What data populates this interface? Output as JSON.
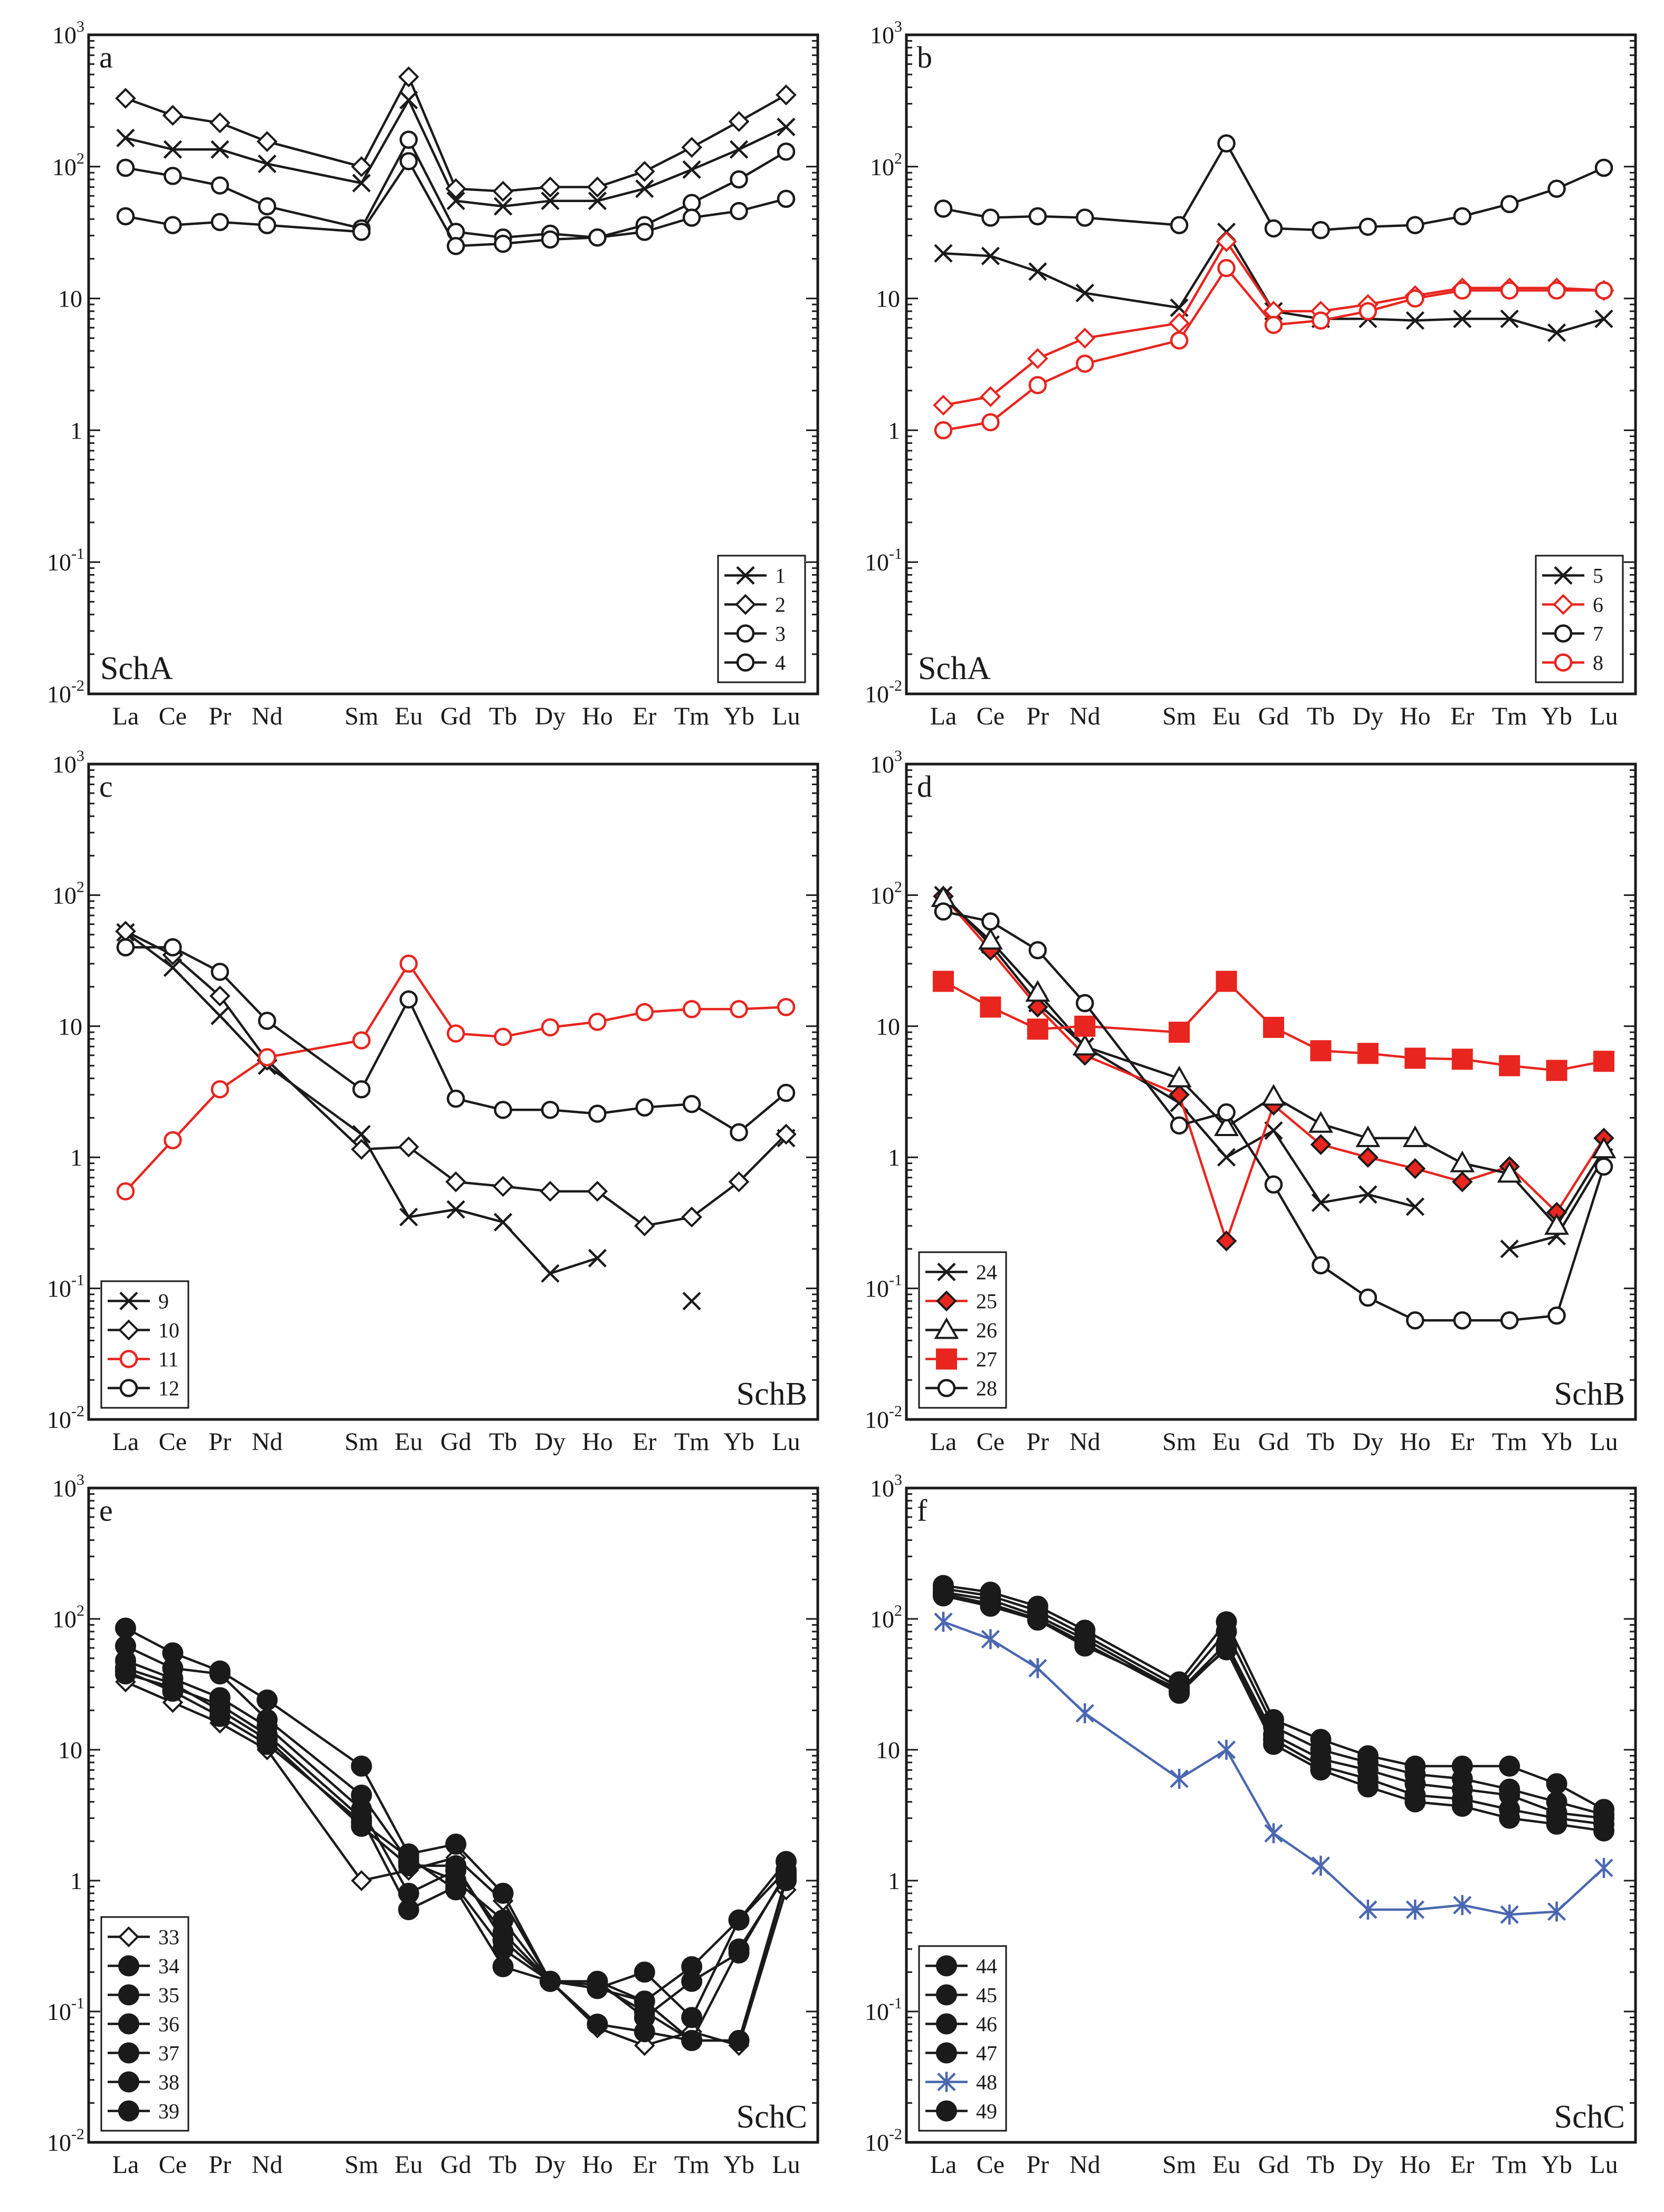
{
  "colors": {
    "black": "#1a1a1a",
    "red": "#e8251f",
    "blue": "#4a67b0",
    "white": "#ffffff"
  },
  "chart_data": [
    {
      "type": "line",
      "panel": "a",
      "group_label": "SchA",
      "yscale": "log",
      "ylim": [
        0.01,
        1000
      ],
      "ytick_labels": [
        {
          "base": "10",
          "exp": "-2"
        },
        {
          "base": "10",
          "exp": "-1"
        },
        {
          "base": "1",
          "exp": ""
        },
        {
          "base": "10",
          "exp": ""
        },
        {
          "base": "10",
          "exp": "2"
        },
        {
          "base": "10",
          "exp": "3"
        }
      ],
      "categories": [
        "La",
        "Ce",
        "Pr",
        "Nd",
        "Sm",
        "Eu",
        "Gd",
        "Tb",
        "Dy",
        "Ho",
        "Er",
        "Tm",
        "Yb",
        "Lu"
      ],
      "x_index": [
        0,
        1,
        2,
        3,
        5,
        6,
        7,
        8,
        9,
        10,
        11,
        12,
        13,
        14
      ],
      "legend_position": "bottom-right",
      "series": [
        {
          "name": "1",
          "marker": "x",
          "color": "black",
          "values": [
            165,
            135,
            135,
            105,
            75,
            320,
            55,
            50,
            55,
            55,
            68,
            95,
            135,
            200
          ]
        },
        {
          "name": "2",
          "marker": "diamond",
          "color": "black",
          "values": [
            330,
            245,
            215,
            155,
            100,
            480,
            68,
            65,
            70,
            70,
            92,
            140,
            220,
            350
          ]
        },
        {
          "name": "3",
          "marker": "circle",
          "color": "black",
          "values": [
            98,
            85,
            72,
            50,
            34,
            160,
            32,
            29,
            31,
            29,
            36,
            53,
            80,
            130
          ]
        },
        {
          "name": "4",
          "marker": "circle",
          "color": "black",
          "values": [
            42,
            36,
            38,
            36,
            32,
            110,
            25,
            26,
            28,
            29,
            32,
            41,
            46,
            57
          ]
        }
      ]
    },
    {
      "type": "line",
      "panel": "b",
      "group_label": "SchA",
      "yscale": "log",
      "ylim": [
        0.01,
        1000
      ],
      "ytick_labels": [
        {
          "base": "10",
          "exp": "-2"
        },
        {
          "base": "10",
          "exp": "-1"
        },
        {
          "base": "1",
          "exp": ""
        },
        {
          "base": "10",
          "exp": ""
        },
        {
          "base": "10",
          "exp": "2"
        },
        {
          "base": "10",
          "exp": "3"
        }
      ],
      "categories": [
        "La",
        "Ce",
        "Pr",
        "Nd",
        "Sm",
        "Eu",
        "Gd",
        "Tb",
        "Dy",
        "Ho",
        "Er",
        "Tm",
        "Yb",
        "Lu"
      ],
      "x_index": [
        0,
        1,
        2,
        3,
        5,
        6,
        7,
        8,
        9,
        10,
        11,
        12,
        13,
        14
      ],
      "legend_position": "bottom-right",
      "series": [
        {
          "name": "5",
          "marker": "x",
          "color": "black",
          "values": [
            22,
            21,
            16,
            11,
            8.5,
            32,
            8,
            7,
            7,
            6.8,
            7,
            7,
            5.5,
            7
          ]
        },
        {
          "name": "6",
          "marker": "diamond",
          "color": "red",
          "values": [
            1.55,
            1.8,
            3.5,
            5,
            6.5,
            27,
            8,
            8,
            9,
            10.5,
            12,
            12,
            12,
            11.5
          ]
        },
        {
          "name": "7",
          "marker": "circle",
          "color": "black",
          "values": [
            48,
            41,
            42,
            41,
            36,
            150,
            34,
            33,
            35,
            36,
            42,
            52,
            68,
            98
          ]
        },
        {
          "name": "8",
          "marker": "circle",
          "color": "red",
          "values": [
            1.0,
            1.15,
            2.2,
            3.2,
            4.8,
            17,
            6.3,
            6.8,
            8,
            10,
            11.5,
            11.5,
            11.5,
            11.5
          ]
        }
      ]
    },
    {
      "type": "line",
      "panel": "c",
      "group_label": "SchB",
      "yscale": "log",
      "ylim": [
        0.01,
        1000
      ],
      "ytick_labels": [
        {
          "base": "10",
          "exp": "-2"
        },
        {
          "base": "10",
          "exp": "-1"
        },
        {
          "base": "1",
          "exp": ""
        },
        {
          "base": "10",
          "exp": ""
        },
        {
          "base": "10",
          "exp": "2"
        },
        {
          "base": "10",
          "exp": "3"
        }
      ],
      "categories": [
        "La",
        "Ce",
        "Pr",
        "Nd",
        "Sm",
        "Eu",
        "Gd",
        "Tb",
        "Dy",
        "Ho",
        "Er",
        "Tm",
        "Yb",
        "Lu"
      ],
      "x_index": [
        0,
        1,
        2,
        3,
        5,
        6,
        7,
        8,
        9,
        10,
        11,
        12,
        13,
        14
      ],
      "legend_position": "bottom-left",
      "series": [
        {
          "name": "9",
          "marker": "x",
          "color": "black",
          "values": [
            52,
            28,
            12,
            5,
            1.5,
            0.35,
            0.4,
            0.32,
            0.13,
            0.17,
            null,
            0.08,
            null,
            1.4
          ]
        },
        {
          "name": "10",
          "marker": "diamond",
          "color": "black",
          "values": [
            53,
            35,
            17,
            5.5,
            1.15,
            1.2,
            0.65,
            0.6,
            0.55,
            0.55,
            0.3,
            0.35,
            0.65,
            1.5
          ]
        },
        {
          "name": "11",
          "marker": "circle",
          "color": "red",
          "values": [
            0.55,
            1.35,
            3.3,
            5.8,
            7.8,
            30,
            8.8,
            8.3,
            9.8,
            10.8,
            12.8,
            13.5,
            13.5,
            14
          ]
        },
        {
          "name": "12",
          "marker": "circle",
          "color": "black",
          "values": [
            40,
            40,
            26,
            11,
            3.3,
            16,
            2.8,
            2.3,
            2.3,
            2.15,
            2.4,
            2.55,
            1.55,
            3.1
          ]
        }
      ]
    },
    {
      "type": "line",
      "panel": "d",
      "group_label": "SchB",
      "yscale": "log",
      "ylim": [
        0.01,
        1000
      ],
      "ytick_labels": [
        {
          "base": "10",
          "exp": "-2"
        },
        {
          "base": "10",
          "exp": "-1"
        },
        {
          "base": "1",
          "exp": ""
        },
        {
          "base": "10",
          "exp": ""
        },
        {
          "base": "10",
          "exp": "2"
        },
        {
          "base": "10",
          "exp": "3"
        }
      ],
      "categories": [
        "La",
        "Ce",
        "Pr",
        "Nd",
        "Sm",
        "Eu",
        "Gd",
        "Tb",
        "Dy",
        "Ho",
        "Er",
        "Tm",
        "Yb",
        "Lu"
      ],
      "x_index": [
        0,
        1,
        2,
        3,
        5,
        6,
        7,
        8,
        9,
        10,
        11,
        12,
        13,
        14
      ],
      "legend_position": "bottom-left",
      "series": [
        {
          "name": "24",
          "marker": "x",
          "color": "black",
          "values": [
            100,
            42,
            15,
            7,
            2.6,
            1.0,
            1.6,
            0.45,
            0.52,
            0.42,
            null,
            0.2,
            0.25,
            1.0
          ]
        },
        {
          "name": "25",
          "marker": "diamond-filled",
          "color": "red",
          "values": [
            98,
            38,
            14,
            6,
            3.0,
            0.23,
            2.5,
            1.25,
            1.0,
            0.82,
            0.65,
            0.85,
            0.38,
            1.4
          ]
        },
        {
          "name": "26",
          "marker": "triangle",
          "color": "black",
          "values": [
            95,
            45,
            18,
            7,
            4.0,
            1.7,
            2.9,
            1.8,
            1.4,
            1.4,
            0.9,
            0.75,
            0.3,
            1.15
          ]
        },
        {
          "name": "27",
          "marker": "square-filled",
          "color": "red",
          "values": [
            22,
            14,
            9.5,
            10,
            9,
            22,
            9.8,
            6.5,
            6.2,
            5.7,
            5.6,
            5.0,
            4.6,
            5.4
          ]
        },
        {
          "name": "28",
          "marker": "circle",
          "color": "black",
          "values": [
            75,
            63,
            38,
            15,
            1.75,
            2.2,
            0.62,
            0.15,
            0.085,
            0.057,
            0.057,
            0.057,
            0.062,
            0.85
          ]
        }
      ]
    },
    {
      "type": "line",
      "panel": "e",
      "group_label": "SchC",
      "yscale": "log",
      "ylim": [
        0.01,
        1000
      ],
      "ytick_labels": [
        {
          "base": "10",
          "exp": "-2"
        },
        {
          "base": "10",
          "exp": "-1"
        },
        {
          "base": "1",
          "exp": ""
        },
        {
          "base": "10",
          "exp": ""
        },
        {
          "base": "10",
          "exp": "2"
        },
        {
          "base": "10",
          "exp": "3"
        }
      ],
      "categories": [
        "La",
        "Ce",
        "Pr",
        "Nd",
        "Sm",
        "Eu",
        "Gd",
        "Tb",
        "Dy",
        "Ho",
        "Er",
        "Tm",
        "Yb",
        "Lu"
      ],
      "x_index": [
        0,
        1,
        2,
        3,
        5,
        6,
        7,
        8,
        9,
        10,
        11,
        12,
        13,
        14
      ],
      "legend_position": "bottom-left",
      "series": [
        {
          "name": "33",
          "marker": "diamond",
          "color": "black",
          "values": [
            33,
            23,
            16,
            10,
            1.0,
            1.2,
            1.5,
            0.7,
            0.17,
            0.075,
            0.055,
            0.07,
            0.055,
            0.85
          ]
        },
        {
          "name": "34",
          "marker": "circle-filled",
          "color": "black",
          "values": [
            85,
            55,
            40,
            24,
            7.5,
            1.6,
            1.9,
            0.8,
            0.17,
            0.15,
            0.2,
            0.09,
            0.5,
            1.4
          ]
        },
        {
          "name": "35",
          "marker": "circle-filled",
          "color": "black",
          "values": [
            62,
            42,
            38,
            17,
            4.5,
            1.4,
            1.0,
            0.5,
            0.17,
            0.17,
            0.12,
            0.22,
            0.5,
            1.2
          ]
        },
        {
          "name": "36",
          "marker": "circle-filled",
          "color": "black",
          "values": [
            48,
            35,
            25,
            15,
            3.5,
            0.8,
            1.2,
            0.4,
            0.17,
            0.16,
            0.1,
            0.06,
            0.3,
            1.1
          ]
        },
        {
          "name": "37",
          "marker": "circle-filled",
          "color": "black",
          "values": [
            38,
            30,
            22,
            13,
            3.0,
            0.6,
            0.9,
            0.3,
            0.17,
            0.08,
            0.07,
            0.06,
            0.06,
            1.0
          ]
        },
        {
          "name": "38",
          "marker": "circle-filled",
          "color": "black",
          "values": [
            42,
            32,
            20,
            12,
            2.6,
            1.3,
            1.3,
            0.35,
            0.17,
            0.17,
            0.09,
            0.17,
            0.28,
            1.15
          ]
        },
        {
          "name": "39",
          "marker": "circle-filled",
          "color": "black",
          "values": [
            40,
            28,
            18,
            11,
            2.8,
            1.5,
            0.85,
            0.22,
            0.17,
            0.15,
            0.12,
            0.06,
            0.06,
            1.05
          ]
        }
      ]
    },
    {
      "type": "line",
      "panel": "f",
      "group_label": "SchC",
      "yscale": "log",
      "ylim": [
        0.01,
        1000
      ],
      "ytick_labels": [
        {
          "base": "10",
          "exp": "-2"
        },
        {
          "base": "10",
          "exp": "-1"
        },
        {
          "base": "1",
          "exp": ""
        },
        {
          "base": "10",
          "exp": ""
        },
        {
          "base": "10",
          "exp": "2"
        },
        {
          "base": "10",
          "exp": "3"
        }
      ],
      "categories": [
        "La",
        "Ce",
        "Pr",
        "Nd",
        "Sm",
        "Eu",
        "Gd",
        "Tb",
        "Dy",
        "Ho",
        "Er",
        "Tm",
        "Yb",
        "Lu"
      ],
      "x_index": [
        0,
        1,
        2,
        3,
        5,
        6,
        7,
        8,
        9,
        10,
        11,
        12,
        13,
        14
      ],
      "legend_position": "bottom-left",
      "series": [
        {
          "name": "44",
          "marker": "circle-filled",
          "color": "black",
          "values": [
            180,
            160,
            125,
            82,
            33,
            95,
            17,
            12,
            9,
            7.5,
            7.5,
            7.5,
            5.5,
            3.5
          ]
        },
        {
          "name": "45",
          "marker": "circle-filled",
          "color": "black",
          "values": [
            170,
            150,
            115,
            75,
            30,
            80,
            15,
            10,
            8,
            6.5,
            6,
            5,
            4,
            3.2
          ]
        },
        {
          "name": "46",
          "marker": "circle-filled",
          "color": "black",
          "values": [
            160,
            140,
            105,
            70,
            28,
            65,
            13,
            8.5,
            7,
            5.5,
            5,
            4.5,
            3.3,
            3.0
          ]
        },
        {
          "name": "47",
          "marker": "circle-filled",
          "color": "black",
          "values": [
            155,
            130,
            100,
            65,
            27,
            60,
            12,
            7.5,
            6,
            4.5,
            4.2,
            3.5,
            3.0,
            2.7
          ]
        },
        {
          "name": "48",
          "marker": "asterisk",
          "color": "blue",
          "values": [
            95,
            70,
            42,
            19,
            6,
            10,
            2.3,
            1.3,
            0.6,
            0.6,
            0.65,
            0.55,
            0.58,
            1.25
          ]
        },
        {
          "name": "49",
          "marker": "circle-filled",
          "color": "black",
          "values": [
            150,
            125,
            98,
            62,
            29,
            58,
            11,
            7.0,
            5.2,
            4.0,
            3.7,
            3.0,
            2.7,
            2.4
          ]
        }
      ]
    }
  ]
}
